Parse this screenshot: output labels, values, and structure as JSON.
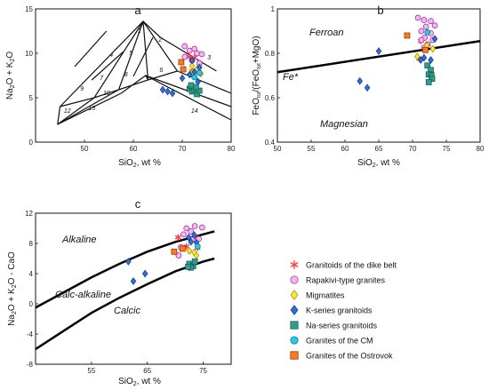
{
  "groups": [
    {
      "key": "dike",
      "label": "Granitoids of the dike belt",
      "marker": "star",
      "fill": "#ff3b3b",
      "stroke": "#ff3b3b"
    },
    {
      "key": "rapak",
      "label": "Rapakivi-type granites",
      "marker": "circle",
      "fill": "#f2b8f0",
      "stroke": "#a020a0"
    },
    {
      "key": "migm",
      "label": "Migmatites",
      "marker": "diamond",
      "fill": "#ffe43a",
      "stroke": "#a08c00"
    },
    {
      "key": "kser",
      "label": "K-series granitoids",
      "marker": "diamond",
      "fill": "#2f6fd6",
      "stroke": "#123a80"
    },
    {
      "key": "naser",
      "label": "Na-series granitoids",
      "marker": "square",
      "fill": "#2e9e8c",
      "stroke": "#14554a"
    },
    {
      "key": "cm",
      "label": "Granites of the CM",
      "marker": "circle",
      "fill": "#27c9e8",
      "stroke": "#0a6a80"
    },
    {
      "key": "ostrov",
      "label": "Granites of the Ostrovok",
      "marker": "square",
      "fill": "#ff7a1a",
      "stroke": "#803000"
    }
  ],
  "chart_data": [
    {
      "panel": "a",
      "type": "scatter",
      "xlabel": "SiO₂, wt %",
      "ylabel": "Na₂O + K₂O",
      "xlim": [
        40,
        80
      ],
      "ylim": [
        0,
        15
      ],
      "xticks": [
        50,
        60,
        70,
        80
      ],
      "yticks": [
        0,
        5,
        10,
        15
      ],
      "field_numbers": [
        "1",
        "2",
        "3",
        "4",
        "5",
        "6",
        "7",
        "8",
        "9",
        "10",
        "11",
        "12",
        "13",
        "14"
      ],
      "field_lines": [
        [
          [
            45,
            4
          ],
          [
            62,
            13.6
          ],
          [
            65.5,
            11.8
          ],
          [
            77,
            8
          ]
        ],
        [
          [
            45,
            4
          ],
          [
            52,
            5
          ],
          [
            62,
            13.6
          ]
        ],
        [
          [
            52,
            5
          ],
          [
            57,
            5.9
          ],
          [
            62,
            13.6
          ]
        ],
        [
          [
            57,
            5.9
          ],
          [
            63,
            7
          ],
          [
            62,
            13.6
          ]
        ],
        [
          [
            63,
            7
          ],
          [
            69,
            8
          ],
          [
            62,
            13.6
          ]
        ],
        [
          [
            45,
            4
          ],
          [
            44.5,
            2
          ]
        ],
        [
          [
            44.5,
            2
          ],
          [
            57.5,
            5.5
          ],
          [
            62.5,
            7.5
          ],
          [
            80,
            2.5
          ]
        ],
        [
          [
            52,
            5
          ],
          [
            44.5,
            2
          ]
        ],
        [
          [
            57,
            5.9
          ],
          [
            44.5,
            2
          ]
        ],
        [
          [
            63,
            7
          ],
          [
            62.5,
            7.5
          ]
        ],
        [
          [
            69,
            8
          ],
          [
            80,
            5.5
          ]
        ],
        [
          [
            62.5,
            7.5
          ],
          [
            80,
            4
          ]
        ],
        [
          [
            48,
            8.5
          ],
          [
            54.5,
            12.5
          ]
        ],
        [
          [
            51.5,
            7
          ],
          [
            58,
            10.2
          ]
        ],
        [
          [
            60,
            7.4
          ],
          [
            64,
            11.8
          ]
        ]
      ],
      "series": [
        {
          "group": "dike",
          "points": [
            [
              72.5,
              9.5
            ],
            [
              73.5,
              8.6
            ],
            [
              71.5,
              9.6
            ],
            [
              72,
              8.0
            ]
          ]
        },
        {
          "group": "rapak",
          "points": [
            [
              70.5,
              10.8
            ],
            [
              71.5,
              10.3
            ],
            [
              72.5,
              10.5
            ],
            [
              73,
              10.0
            ],
            [
              74,
              9.9
            ],
            [
              72,
              9.2
            ],
            [
              73.5,
              8.9
            ],
            [
              70.5,
              9.6
            ]
          ]
        },
        {
          "group": "migm",
          "points": [
            [
              72,
              8.6
            ],
            [
              73,
              8.2
            ],
            [
              73.8,
              7.7
            ],
            [
              72.2,
              7.9
            ]
          ]
        },
        {
          "group": "kser",
          "points": [
            [
              70,
              7.2
            ],
            [
              71.5,
              7.6
            ],
            [
              72.5,
              7.9
            ],
            [
              73.2,
              6.8
            ],
            [
              66,
              5.9
            ],
            [
              67,
              5.7
            ],
            [
              68,
              5.5
            ],
            [
              72,
              9.2
            ],
            [
              73.5,
              8.4
            ]
          ]
        },
        {
          "group": "naser",
          "points": [
            [
              71.5,
              6.0
            ],
            [
              72,
              5.7
            ],
            [
              72.5,
              5.9
            ],
            [
              73,
              5.4
            ],
            [
              73.5,
              5.8
            ],
            [
              72.8,
              6.2
            ],
            [
              71.8,
              6.4
            ]
          ]
        },
        {
          "group": "cm",
          "points": [
            [
              73.5,
              7.8
            ],
            [
              72.5,
              7.3
            ]
          ]
        },
        {
          "group": "ostrov",
          "points": [
            [
              69.8,
              9.0
            ],
            [
              70.2,
              8.2
            ]
          ]
        }
      ]
    },
    {
      "panel": "b",
      "type": "scatter",
      "xlabel": "SiO₂, wt %",
      "ylabel": "FeOₜₒₜ/(FeOₜₒₜ+MgO)",
      "xlim": [
        50,
        80
      ],
      "ylim": [
        0.4,
        1.0
      ],
      "xticks": [
        50,
        55,
        60,
        65,
        70,
        75,
        80
      ],
      "yticks": [
        0.4,
        0.6,
        0.8,
        1.0
      ],
      "ytick_labels": [
        "0.4",
        "0.6",
        "0.8",
        "1"
      ],
      "region_labels": [
        "Ferroan",
        "Magnesian"
      ],
      "line_label": "Fe*",
      "divider": [
        [
          50,
          0.715
        ],
        [
          80,
          0.855
        ]
      ],
      "series": [
        {
          "group": "dike",
          "points": [
            [
              71.2,
              0.855
            ],
            [
              72.3,
              0.84
            ],
            [
              71,
              0.775
            ]
          ]
        },
        {
          "group": "rapak",
          "points": [
            [
              70.8,
              0.96
            ],
            [
              71.7,
              0.95
            ],
            [
              72.7,
              0.945
            ],
            [
              73.3,
              0.925
            ],
            [
              72,
              0.92
            ],
            [
              71.3,
              0.9
            ],
            [
              72.7,
              0.89
            ],
            [
              71.8,
              0.87
            ],
            [
              73,
              0.86
            ],
            [
              71.3,
              0.86
            ],
            [
              72.2,
              0.84
            ],
            [
              71.7,
              0.825
            ]
          ]
        },
        {
          "group": "migm",
          "points": [
            [
              70.7,
              0.785
            ],
            [
              72.1,
              0.835
            ],
            [
              73,
              0.82
            ]
          ]
        },
        {
          "group": "kser",
          "points": [
            [
              71.2,
              0.77
            ],
            [
              71.7,
              0.78
            ],
            [
              72.7,
              0.77
            ],
            [
              73.3,
              0.865
            ],
            [
              65,
              0.81
            ],
            [
              63.3,
              0.645
            ],
            [
              62.2,
              0.675
            ]
          ]
        },
        {
          "group": "naser",
          "points": [
            [
              72.2,
              0.745
            ],
            [
              72.7,
              0.725
            ],
            [
              72.4,
              0.705
            ],
            [
              72.8,
              0.7
            ],
            [
              72.9,
              0.685
            ],
            [
              72.4,
              0.67
            ]
          ]
        },
        {
          "group": "cm",
          "points": [
            [
              72.2,
              0.895
            ]
          ]
        },
        {
          "group": "ostrov",
          "points": [
            [
              69.2,
              0.88
            ],
            [
              71.9,
              0.815
            ]
          ]
        }
      ]
    },
    {
      "panel": "c",
      "type": "scatter",
      "xlabel": "SiO₂, wt %",
      "ylabel": "Na₂O + K₂O - CaO",
      "xlim": [
        45,
        80
      ],
      "ylim": [
        -8,
        12
      ],
      "xticks": [
        55,
        65,
        75
      ],
      "yticks": [
        -8,
        -4,
        0,
        4,
        8,
        12
      ],
      "region_labels": [
        "Alkaline",
        "Calc-alkaline",
        "Calcic"
      ],
      "boundaries": [
        [
          [
            45,
            -0.5
          ],
          [
            50,
            1.5
          ],
          [
            55,
            3.5
          ],
          [
            60,
            5.3
          ],
          [
            65,
            6.9
          ],
          [
            70,
            8.2
          ],
          [
            75,
            9.2
          ],
          [
            77,
            9.6
          ]
        ],
        [
          [
            45,
            -6
          ],
          [
            50,
            -3.6
          ],
          [
            55,
            -1.2
          ],
          [
            60,
            0.8
          ],
          [
            65,
            2.6
          ],
          [
            70,
            4.3
          ],
          [
            75,
            5.6
          ],
          [
            77,
            6
          ]
        ]
      ],
      "series": [
        {
          "group": "dike",
          "points": [
            [
              70.5,
              8.8
            ],
            [
              72,
              7.6
            ],
            [
              74,
              7.4
            ],
            [
              73.5,
              8.9
            ]
          ]
        },
        {
          "group": "rapak",
          "points": [
            [
              71.5,
              9.2
            ],
            [
              72.8,
              9.6
            ],
            [
              73.5,
              10.3
            ],
            [
              74.8,
              10.1
            ],
            [
              72,
              10
            ],
            [
              73,
              8.5
            ],
            [
              74.2,
              8.6
            ],
            [
              71,
              7.5
            ],
            [
              70.6,
              6.4
            ]
          ]
        },
        {
          "group": "migm",
          "points": [
            [
              72.5,
              7
            ],
            [
              73.4,
              6.8
            ],
            [
              73.8,
              6.4
            ]
          ]
        },
        {
          "group": "kser",
          "points": [
            [
              72.8,
              8.2
            ],
            [
              73.8,
              8.1
            ],
            [
              73.4,
              9.1
            ],
            [
              72.4,
              8.8
            ],
            [
              61.6,
              5.6
            ],
            [
              64.6,
              4
            ],
            [
              62.5,
              3
            ]
          ]
        },
        {
          "group": "naser",
          "points": [
            [
              72.5,
              5.3
            ],
            [
              73.2,
              5.0
            ],
            [
              72.8,
              4.8
            ],
            [
              73.5,
              5.6
            ],
            [
              72.3,
              4.9
            ]
          ]
        },
        {
          "group": "cm",
          "points": [
            [
              74,
              7.6
            ]
          ]
        },
        {
          "group": "ostrov",
          "points": [
            [
              69.8,
              6.9
            ],
            [
              71.3,
              7.3
            ]
          ]
        }
      ]
    }
  ]
}
